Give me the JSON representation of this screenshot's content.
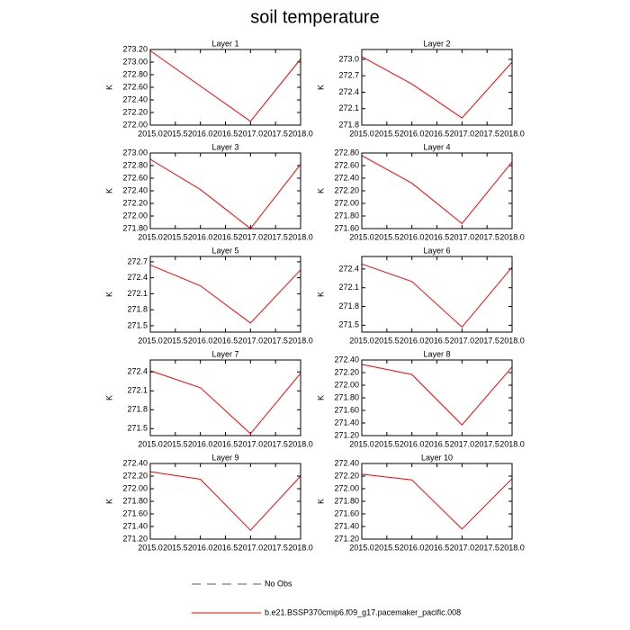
{
  "title": "soil temperature",
  "legend": [
    {
      "name": "No Obs",
      "color": "#5a4f8f",
      "dash": true
    },
    {
      "name": "b.e21.BSSP370cmip6.f09_g17.pacemaker_pacific.008",
      "color": "#ff0000",
      "dash": false
    }
  ],
  "chart_data": [
    {
      "type": "line",
      "title": "Layer 1",
      "ylabel": "K",
      "x": [
        2015,
        2016,
        2017,
        2018
      ],
      "xlim": [
        2015,
        2018
      ],
      "xticks": [
        {
          "value": 2015,
          "label": "2015.0"
        },
        2015.5,
        {
          "value": 2016,
          "label": "2016.0"
        },
        2016.5,
        {
          "value": 2017,
          "label": "2017.0"
        },
        2017.5,
        {
          "value": 2018,
          "label": "2018.0"
        }
      ],
      "ylim": [
        272,
        273.2
      ],
      "yticks": [
        {
          "value": 272,
          "label": "272.00"
        },
        {
          "value": 272.2,
          "label": "272.20"
        },
        {
          "value": 272.4,
          "label": "272.40"
        },
        {
          "value": 272.6,
          "label": "272.60"
        },
        {
          "value": 272.8,
          "label": "272.80"
        },
        {
          "value": 273,
          "label": "273.00"
        },
        {
          "value": 273.2,
          "label": "273.20"
        }
      ],
      "series": [
        {
          "color": "#ff0000",
          "values": [
            273.18,
            272.62,
            272.06,
            273.05
          ]
        }
      ]
    },
    {
      "type": "line",
      "title": "Layer 2",
      "ylabel": "K",
      "x": [
        2015,
        2016,
        2017,
        2018
      ],
      "xlim": [
        2015,
        2018
      ],
      "xticks": [
        {
          "value": 2015,
          "label": "2015.0"
        },
        2015.5,
        {
          "value": 2016,
          "label": "2016.0"
        },
        2016.5,
        {
          "value": 2017,
          "label": "2017.0"
        },
        2017.5,
        {
          "value": 2018,
          "label": "2018.0"
        }
      ],
      "ylim": [
        271.8,
        273.18
      ],
      "yticks": [
        271.8,
        272.1,
        272.4,
        272.7,
        {
          "value": 273,
          "label": "273.0"
        }
      ],
      "series": [
        {
          "color": "#ff0000",
          "values": [
            273.05,
            272.55,
            271.93,
            272.95
          ]
        }
      ]
    },
    {
      "type": "line",
      "title": "Layer 3",
      "ylabel": "K",
      "x": [
        2015,
        2016,
        2017,
        2018
      ],
      "xlim": [
        2015,
        2018
      ],
      "xticks": [
        {
          "value": 2015,
          "label": "2015.0"
        },
        2015.5,
        {
          "value": 2016,
          "label": "2016.0"
        },
        2016.5,
        {
          "value": 2017,
          "label": "2017.0"
        },
        2017.5,
        {
          "value": 2018,
          "label": "2018.0"
        }
      ],
      "ylim": [
        271.8,
        273
      ],
      "yticks": [
        {
          "value": 271.8,
          "label": "271.80"
        },
        {
          "value": 272,
          "label": "272.00"
        },
        {
          "value": 272.2,
          "label": "272.20"
        },
        {
          "value": 272.4,
          "label": "272.40"
        },
        {
          "value": 272.6,
          "label": "272.60"
        },
        {
          "value": 272.8,
          "label": "272.80"
        },
        {
          "value": 273,
          "label": "273.00"
        }
      ],
      "series": [
        {
          "color": "#ff0000",
          "values": [
            272.9,
            272.42,
            271.8,
            272.82
          ]
        }
      ]
    },
    {
      "type": "line",
      "title": "Layer 4",
      "ylabel": "K",
      "x": [
        2015,
        2016,
        2017,
        2018
      ],
      "xlim": [
        2015,
        2018
      ],
      "xticks": [
        {
          "value": 2015,
          "label": "2015.0"
        },
        2015.5,
        {
          "value": 2016,
          "label": "2016.0"
        },
        2016.5,
        {
          "value": 2017,
          "label": "2017.0"
        },
        2017.5,
        {
          "value": 2018,
          "label": "2018.0"
        }
      ],
      "ylim": [
        271.6,
        272.8
      ],
      "yticks": [
        {
          "value": 271.6,
          "label": "271.60"
        },
        {
          "value": 271.8,
          "label": "271.80"
        },
        {
          "value": 272,
          "label": "272.00"
        },
        {
          "value": 272.2,
          "label": "272.20"
        },
        {
          "value": 272.4,
          "label": "272.40"
        },
        {
          "value": 272.6,
          "label": "272.60"
        },
        {
          "value": 272.8,
          "label": "272.80"
        }
      ],
      "series": [
        {
          "color": "#ff0000",
          "values": [
            272.76,
            272.32,
            271.68,
            272.66
          ]
        }
      ]
    },
    {
      "type": "line",
      "title": "Layer 5",
      "ylabel": "K",
      "x": [
        2015,
        2016,
        2017,
        2018
      ],
      "xlim": [
        2015,
        2018
      ],
      "xticks": [
        {
          "value": 2015,
          "label": "2015.0"
        },
        2015.5,
        {
          "value": 2016,
          "label": "2016.0"
        },
        2016.5,
        {
          "value": 2017,
          "label": "2017.0"
        },
        2017.5,
        {
          "value": 2018,
          "label": "2018.0"
        }
      ],
      "ylim": [
        271.38,
        272.8
      ],
      "yticks": [
        271.5,
        271.8,
        272.1,
        272.4,
        272.7
      ],
      "series": [
        {
          "color": "#ff0000",
          "values": [
            272.64,
            272.25,
            271.55,
            272.55
          ]
        }
      ]
    },
    {
      "type": "line",
      "title": "Layer 6",
      "ylabel": "K",
      "x": [
        2015,
        2016,
        2017,
        2018
      ],
      "xlim": [
        2015,
        2018
      ],
      "xticks": [
        {
          "value": 2015,
          "label": "2015.0"
        },
        2015.5,
        {
          "value": 2016,
          "label": "2016.0"
        },
        2016.5,
        {
          "value": 2017,
          "label": "2017.0"
        },
        2017.5,
        {
          "value": 2018,
          "label": "2018.0"
        }
      ],
      "ylim": [
        271.39,
        272.6
      ],
      "yticks": [
        271.5,
        271.8,
        272.1,
        272.4
      ],
      "series": [
        {
          "color": "#ff0000",
          "values": [
            272.48,
            272.2,
            271.47,
            272.43
          ]
        }
      ]
    },
    {
      "type": "line",
      "title": "Layer 7",
      "ylabel": "K",
      "x": [
        2015,
        2016,
        2017,
        2018
      ],
      "xlim": [
        2015,
        2018
      ],
      "xticks": [
        {
          "value": 2015,
          "label": "2015.0"
        },
        2015.5,
        {
          "value": 2016,
          "label": "2016.0"
        },
        2016.5,
        {
          "value": 2017,
          "label": "2017.0"
        },
        2017.5,
        {
          "value": 2018,
          "label": "2018.0"
        }
      ],
      "ylim": [
        271.39,
        272.59
      ],
      "yticks": [
        271.5,
        271.8,
        272.1,
        272.4
      ],
      "series": [
        {
          "color": "#ff0000",
          "values": [
            272.42,
            272.15,
            271.42,
            272.38
          ]
        }
      ]
    },
    {
      "type": "line",
      "title": "Layer 8",
      "ylabel": "K",
      "x": [
        2015,
        2016,
        2017,
        2018
      ],
      "xlim": [
        2015,
        2018
      ],
      "xticks": [
        {
          "value": 2015,
          "label": "2015.0"
        },
        2015.5,
        {
          "value": 2016,
          "label": "2016.0"
        },
        2016.5,
        {
          "value": 2017,
          "label": "2017.0"
        },
        2017.5,
        {
          "value": 2018,
          "label": "2018.0"
        }
      ],
      "ylim": [
        271.2,
        272.4
      ],
      "yticks": [
        {
          "value": 271.2,
          "label": "271.20"
        },
        {
          "value": 271.4,
          "label": "271.40"
        },
        {
          "value": 271.6,
          "label": "271.60"
        },
        {
          "value": 271.8,
          "label": "271.80"
        },
        {
          "value": 272,
          "label": "272.00"
        },
        {
          "value": 272.2,
          "label": "272.20"
        },
        {
          "value": 272.4,
          "label": "272.40"
        }
      ],
      "series": [
        {
          "color": "#ff0000",
          "values": [
            272.33,
            272.17,
            271.37,
            272.29
          ]
        }
      ]
    },
    {
      "type": "line",
      "title": "Layer 9",
      "ylabel": "K",
      "x": [
        2015,
        2016,
        2017,
        2018
      ],
      "xlim": [
        2015,
        2018
      ],
      "xticks": [
        {
          "value": 2015,
          "label": "2015.0"
        },
        2015.5,
        {
          "value": 2016,
          "label": "2016.0"
        },
        2016.5,
        {
          "value": 2017,
          "label": "2017.0"
        },
        2017.5,
        {
          "value": 2018,
          "label": "2018.0"
        }
      ],
      "ylim": [
        271.2,
        272.4
      ],
      "yticks": [
        {
          "value": 271.2,
          "label": "271.20"
        },
        {
          "value": 271.4,
          "label": "271.40"
        },
        {
          "value": 271.6,
          "label": "271.60"
        },
        {
          "value": 271.8,
          "label": "271.80"
        },
        {
          "value": 272,
          "label": "272.00"
        },
        {
          "value": 272.2,
          "label": "272.20"
        },
        {
          "value": 272.4,
          "label": "272.40"
        }
      ],
      "series": [
        {
          "color": "#ff0000",
          "values": [
            272.27,
            272.15,
            271.34,
            272.2
          ]
        }
      ]
    },
    {
      "type": "line",
      "title": "Layer 10",
      "ylabel": "K",
      "x": [
        2015,
        2016,
        2017,
        2018
      ],
      "xlim": [
        2015,
        2018
      ],
      "xticks": [
        {
          "value": 2015,
          "label": "2015.0"
        },
        2015.5,
        {
          "value": 2016,
          "label": "2016.0"
        },
        2016.5,
        {
          "value": 2017,
          "label": "2017.0"
        },
        2017.5,
        {
          "value": 2018,
          "label": "2018.0"
        }
      ],
      "ylim": [
        271.2,
        272.4
      ],
      "yticks": [
        {
          "value": 271.2,
          "label": "271.20"
        },
        {
          "value": 271.4,
          "label": "271.40"
        },
        {
          "value": 271.6,
          "label": "271.60"
        },
        {
          "value": 271.8,
          "label": "271.80"
        },
        {
          "value": 272,
          "label": "272.00"
        },
        {
          "value": 272.2,
          "label": "272.20"
        },
        {
          "value": 272.4,
          "label": "272.40"
        }
      ],
      "series": [
        {
          "color": "#ff0000",
          "values": [
            272.23,
            272.14,
            271.36,
            272.16
          ]
        }
      ]
    }
  ]
}
